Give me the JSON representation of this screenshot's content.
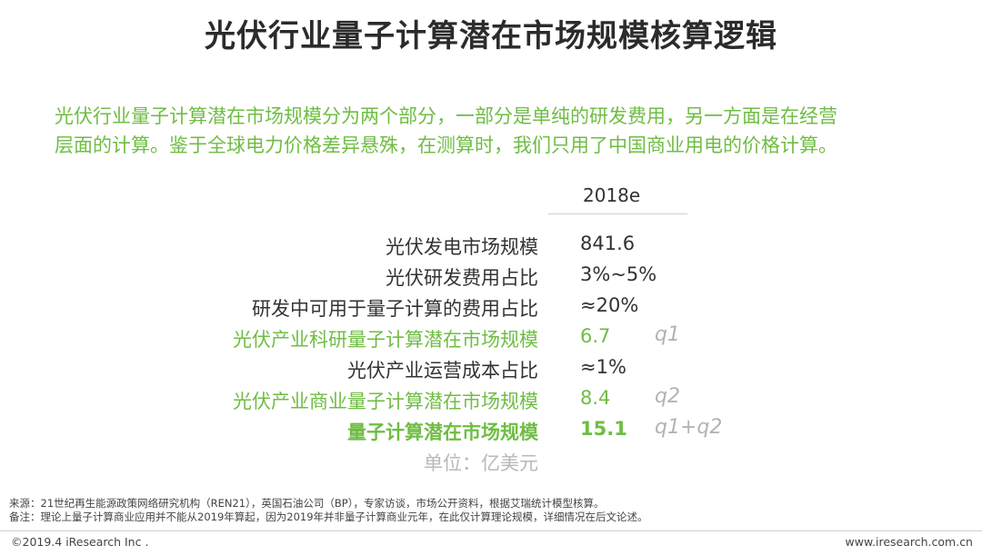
{
  "title": "光伏行业量子计算潜在市场规模核算逻辑",
  "intro_line1": "光伏行业量子计算潜在市场规模分为两个部分，一部分是单纯的研发费用，另一方面是在经营",
  "intro_line2": "层面的计算。鉴于全球电力价格差异悬殊，在测算时，我们只用了中国商业用电的价格计算。",
  "column_header": "2018e",
  "rows": [
    {
      "label": "光伏发电市场规模",
      "value": "841.6",
      "tag": ""
    },
    {
      "label": "光伏研发费用占比",
      "value": "3%~5%",
      "tag": ""
    },
    {
      "label": "研发中可用于量子计算的费用占比",
      "value": "≈20%",
      "tag": ""
    },
    {
      "label": "光伏产业科研量子计算潜在市场规模",
      "value": "6.7",
      "tag": "q1"
    },
    {
      "label": "光伏产业运营成本占比",
      "value": "≈1%",
      "tag": ""
    },
    {
      "label": "光伏产业商业量子计算潜在市场规模",
      "value": "8.4",
      "tag": "q2"
    },
    {
      "label": "量子计算潜在市场规模",
      "value": "15.1",
      "tag": "q1+q2"
    },
    {
      "label": "单位：亿美元",
      "value": "",
      "tag": ""
    }
  ],
  "footnote_source": "来源：21世纪再生能源政策网络研究机构（REN21），英国石油公司（BP），专家访谈，市场公开资料，根据艾瑞统计模型核算。",
  "footnote_note": "备注：理论上量子计算商业应用并不能从2019年算起，因为2019年并非量子计算商业元年，在此仅计算理论规模，详细情况在后文论述。",
  "copyright": "©2019.4 iResearch Inc .",
  "website": "www.iresearch.com.cn",
  "colors": {
    "accent_green": "#6fbd44",
    "tag_gray": "#b3b3b3",
    "unit_gray": "#b8b8b8"
  }
}
